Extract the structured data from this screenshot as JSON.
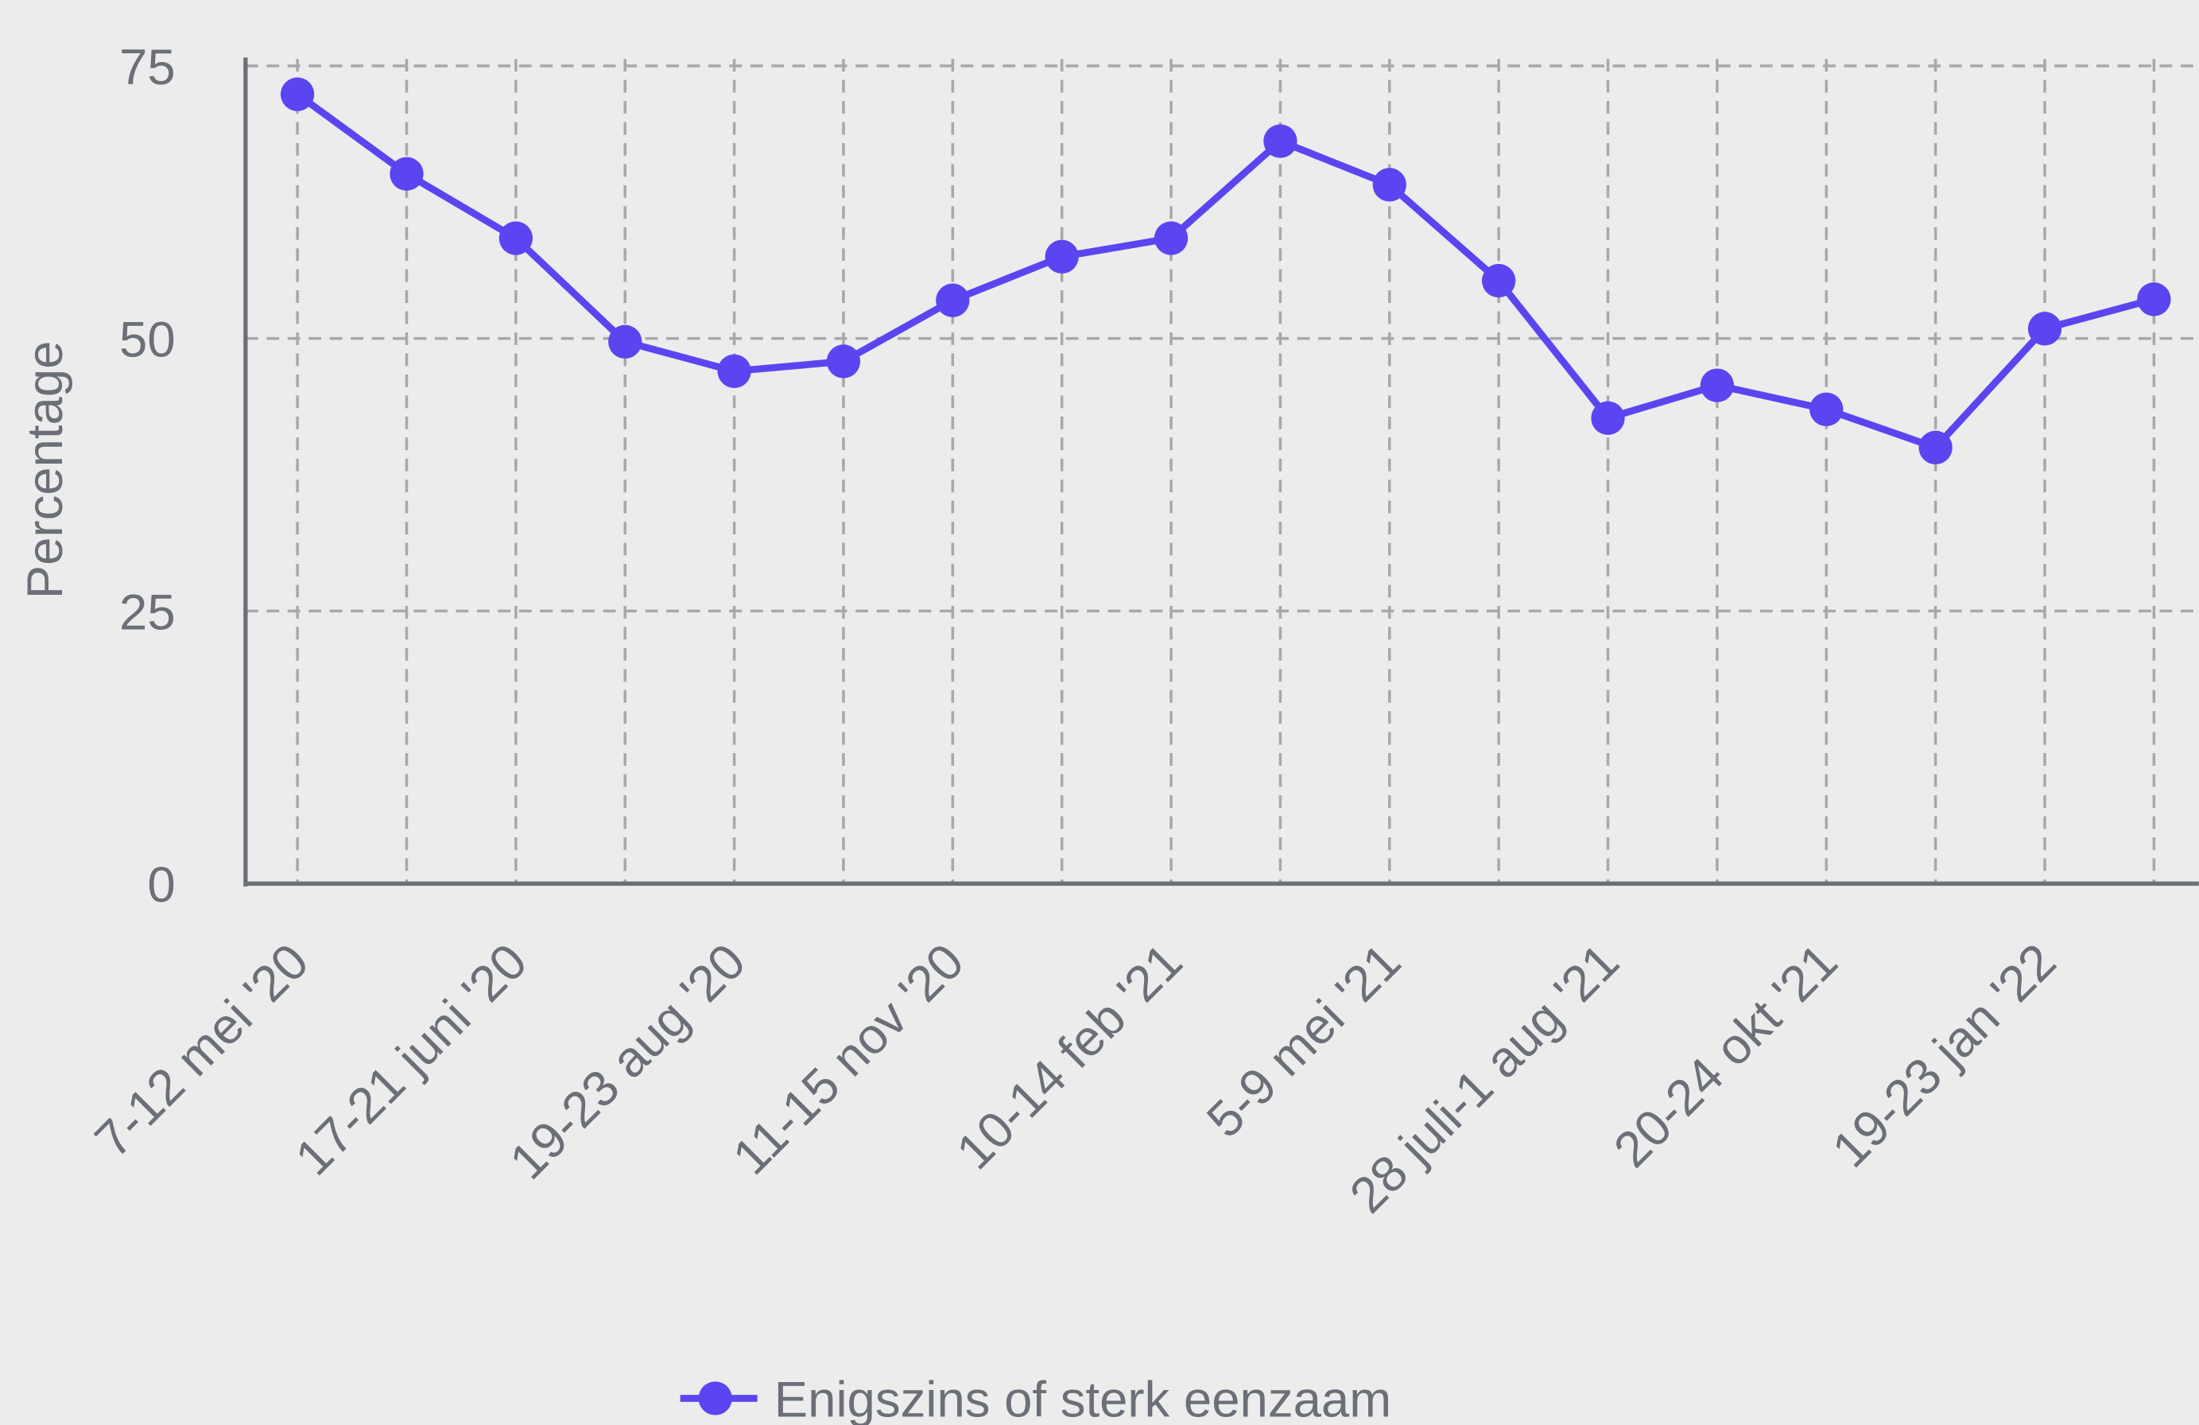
{
  "chart_data": {
    "type": "line",
    "y_label": "Percentage",
    "categories": [
      "7-12 mei '20",
      null,
      "17-21 juni '20",
      null,
      "19-23 aug '20",
      null,
      "11-15 nov '20",
      null,
      "10-14 feb '21",
      null,
      "5-9 mei '21",
      null,
      "28 juli-1 aug '21",
      null,
      "20-24 okt '21",
      null,
      "19-23 jan '22",
      null
    ],
    "series": [
      {
        "name": "Enigszins of sterk eenzaam",
        "color": "#5b45f0",
        "values": [
          72.4,
          65.1,
          59.2,
          49.7,
          47.0,
          47.9,
          53.5,
          57.5,
          59.2,
          68.1,
          64.1,
          55.3,
          42.7,
          45.7,
          43.5,
          40.0,
          50.9,
          53.6
        ]
      }
    ],
    "ylim": [
      0,
      75
    ],
    "yticks": [
      0,
      25,
      50,
      75
    ],
    "grid": true,
    "legend": "bottom"
  }
}
